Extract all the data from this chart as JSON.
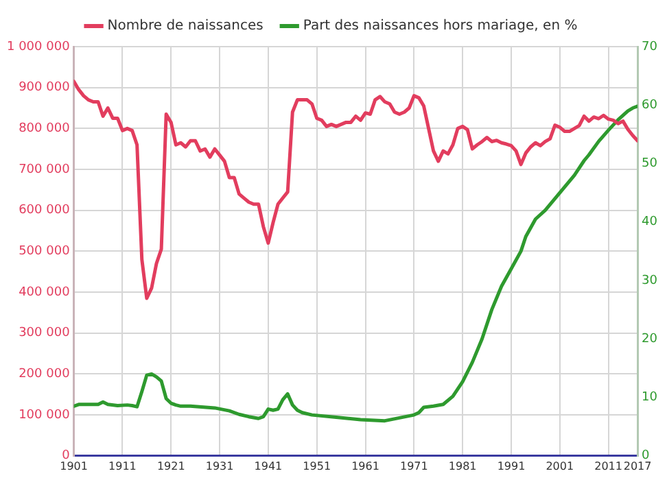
{
  "chart_data": {
    "type": "line",
    "series": [
      {
        "name": "Nombre de naissances",
        "color": "#e23d5e",
        "x": [
          1901,
          1902,
          1903,
          1904,
          1905,
          1906,
          1907,
          1908,
          1909,
          1910,
          1911,
          1912,
          1913,
          1914,
          1915,
          1916,
          1917,
          1918,
          1919,
          1920,
          1921,
          1922,
          1923,
          1924,
          1925,
          1926,
          1927,
          1928,
          1929,
          1930,
          1931,
          1932,
          1933,
          1934,
          1935,
          1936,
          1937,
          1938,
          1939,
          1940,
          1941,
          1942,
          1943,
          1944,
          1945,
          1946,
          1947,
          1948,
          1949,
          1950,
          1951,
          1952,
          1953,
          1954,
          1955,
          1956,
          1957,
          1958,
          1959,
          1960,
          1961,
          1962,
          1963,
          1964,
          1965,
          1966,
          1967,
          1968,
          1969,
          1970,
          1971,
          1972,
          1973,
          1974,
          1975,
          1976,
          1977,
          1978,
          1979,
          1980,
          1981,
          1982,
          1983,
          1984,
          1985,
          1986,
          1987,
          1988,
          1989,
          1990,
          1991,
          1992,
          1993,
          1994,
          1995,
          1996,
          1997,
          1998,
          1999,
          2000,
          2001,
          2002,
          2003,
          2004,
          2005,
          2006,
          2007,
          2008,
          2009,
          2010,
          2011,
          2012,
          2013,
          2014,
          2015,
          2016,
          2017
        ],
        "values": [
          915000,
          895000,
          880000,
          870000,
          865000,
          865000,
          830000,
          850000,
          825000,
          825000,
          795000,
          800000,
          795000,
          760000,
          480000,
          385000,
          410000,
          470000,
          505000,
          835000,
          815000,
          760000,
          765000,
          755000,
          770000,
          770000,
          745000,
          750000,
          730000,
          750000,
          735000,
          720000,
          680000,
          680000,
          640000,
          630000,
          620000,
          615000,
          615000,
          560000,
          520000,
          570000,
          615000,
          630000,
          645000,
          840000,
          870000,
          870000,
          870000,
          860000,
          825000,
          820000,
          805000,
          810000,
          805000,
          810000,
          815000,
          815000,
          830000,
          820000,
          838000,
          835000,
          870000,
          878000,
          865000,
          860000,
          840000,
          835000,
          840000,
          850000,
          880000,
          875000,
          855000,
          800000,
          745000,
          720000,
          745000,
          738000,
          760000,
          800000,
          805000,
          797000,
          750000,
          760000,
          768000,
          778000,
          768000,
          771000,
          765000,
          762000,
          758000,
          745000,
          712000,
          740000,
          755000,
          765000,
          758000,
          768000,
          775000,
          808000,
          803000,
          793000,
          793000,
          800000,
          807000,
          830000,
          818000,
          828000,
          824000,
          832000,
          823000,
          820000,
          812000,
          818000,
          798000,
          783000,
          770000
        ]
      },
      {
        "name": "Part des naissances hors mariage, en %",
        "color": "#2e9a2e",
        "axis": "y2",
        "x": [
          1901,
          1902,
          1906,
          1907,
          1908,
          1910,
          1912,
          1913,
          1914,
          1915,
          1916,
          1917,
          1918,
          1919,
          1920,
          1921,
          1922,
          1923,
          1925,
          1930,
          1933,
          1935,
          1937,
          1939,
          1940,
          1941,
          1942,
          1943,
          1944,
          1945,
          1946,
          1947,
          1948,
          1950,
          1955,
          1960,
          1965,
          1968,
          1971,
          1972,
          1973,
          1975,
          1977,
          1979,
          1981,
          1983,
          1985,
          1987,
          1989,
          1991,
          1993,
          1994,
          1996,
          1998,
          2000,
          2002,
          2004,
          2006,
          2007,
          2009,
          2011,
          2013,
          2015,
          2016,
          2017
        ],
        "values": [
          8.5,
          8.8,
          8.8,
          9.2,
          8.8,
          8.6,
          8.7,
          8.6,
          8.4,
          11,
          13.8,
          14,
          13.5,
          12.8,
          9.8,
          9,
          8.7,
          8.5,
          8.5,
          8.2,
          7.7,
          7.1,
          6.7,
          6.4,
          6.7,
          8,
          7.8,
          8,
          9.6,
          10.6,
          8.7,
          7.8,
          7.4,
          7,
          6.6,
          6.2,
          6,
          6.5,
          7,
          7.4,
          8.3,
          8.5,
          8.8,
          10.2,
          12.7,
          16,
          20,
          25,
          29,
          32,
          35,
          37.5,
          40.5,
          42,
          44,
          46,
          48,
          50.5,
          51.5,
          53.8,
          55.7,
          57.5,
          59,
          59.5,
          59.8
        ]
      }
    ],
    "xlim": [
      1901,
      2017
    ],
    "xticks": [
      1901,
      1911,
      1921,
      1931,
      1941,
      1951,
      1961,
      1971,
      1981,
      1991,
      2001,
      2011,
      2017
    ],
    "ylim": [
      0,
      1000000
    ],
    "yticks": [
      0,
      {
        "value": 100000,
        "label": "100 000"
      },
      {
        "value": 200000,
        "label": "200 000"
      },
      {
        "value": 300000,
        "label": "300 000"
      },
      {
        "value": 400000,
        "label": "400 000"
      },
      {
        "value": 500000,
        "label": "500 000"
      },
      {
        "value": 600000,
        "label": "600 000"
      },
      {
        "value": 700000,
        "label": "700 000"
      },
      {
        "value": 800000,
        "label": "800 000"
      },
      {
        "value": 900000,
        "label": "900 000"
      },
      {
        "value": 1000000,
        "label": "1 000 000"
      }
    ],
    "y2lim": [
      0,
      70
    ],
    "y2ticks": [
      0,
      10,
      20,
      30,
      40,
      50,
      60,
      70
    ],
    "grid": true,
    "legend": "top",
    "marker": "none",
    "line_style": "solid"
  }
}
